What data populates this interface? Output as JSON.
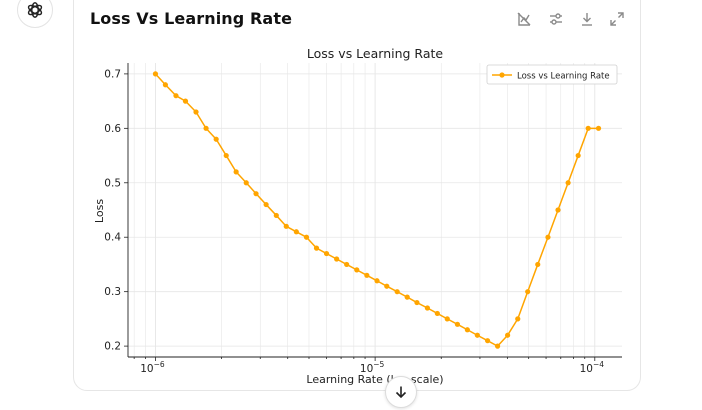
{
  "card": {
    "title": "Loss Vs Learning Rate",
    "tools": [
      "chart-interactive-toggle",
      "options",
      "download",
      "expand"
    ]
  },
  "colors": {
    "series": "#ffa500",
    "grid": "#e6e6e6",
    "axis": "#222222"
  },
  "chart_data": {
    "type": "line",
    "title": "Loss vs Learning Rate",
    "xlabel": "Learning Rate (log scale)",
    "ylabel": "Loss",
    "xscale": "log",
    "xlim": [
      7.5e-07,
      0.000133
    ],
    "ylim": [
      0.18,
      0.72
    ],
    "xticks": [
      {
        "value": 1e-06,
        "base": "10",
        "exp": "−6"
      },
      {
        "value": 1e-05,
        "base": "10",
        "exp": "−5"
      },
      {
        "value": 0.0001,
        "base": "10",
        "exp": "−4"
      }
    ],
    "yticks": [
      "0.2",
      "0.3",
      "0.4",
      "0.5",
      "0.6",
      "0.7"
    ],
    "grid": true,
    "legend_position": "top-right",
    "series": [
      {
        "name": "Loss vs Learning Rate",
        "color": "#ffa500",
        "x": [
          1e-06,
          1.11e-06,
          1.24e-06,
          1.37e-06,
          1.53e-06,
          1.7e-06,
          1.89e-06,
          2.1e-06,
          2.33e-06,
          2.59e-06,
          2.87e-06,
          3.19e-06,
          3.55e-06,
          3.94e-06,
          4.38e-06,
          4.87e-06,
          5.41e-06,
          6.01e-06,
          6.68e-06,
          7.42e-06,
          8.25e-06,
          9.17e-06,
          1.02e-05,
          1.13e-05,
          1.26e-05,
          1.4e-05,
          1.55e-05,
          1.73e-05,
          1.92e-05,
          2.13e-05,
          2.37e-05,
          2.63e-05,
          2.92e-05,
          3.25e-05,
          3.61e-05,
          4.01e-05,
          4.46e-05,
          4.95e-05,
          5.5e-05,
          6.12e-05,
          6.8e-05,
          7.56e-05,
          8.4e-05,
          9.33e-05,
          0.000104
        ],
        "y": [
          0.7,
          0.68,
          0.66,
          0.65,
          0.63,
          0.6,
          0.58,
          0.55,
          0.52,
          0.5,
          0.48,
          0.46,
          0.44,
          0.42,
          0.41,
          0.4,
          0.38,
          0.37,
          0.36,
          0.35,
          0.34,
          0.33,
          0.32,
          0.31,
          0.3,
          0.29,
          0.28,
          0.27,
          0.26,
          0.25,
          0.24,
          0.23,
          0.22,
          0.21,
          0.2,
          0.22,
          0.25,
          0.3,
          0.35,
          0.4,
          0.45,
          0.5,
          0.55,
          0.6,
          0.6
        ]
      }
    ]
  }
}
